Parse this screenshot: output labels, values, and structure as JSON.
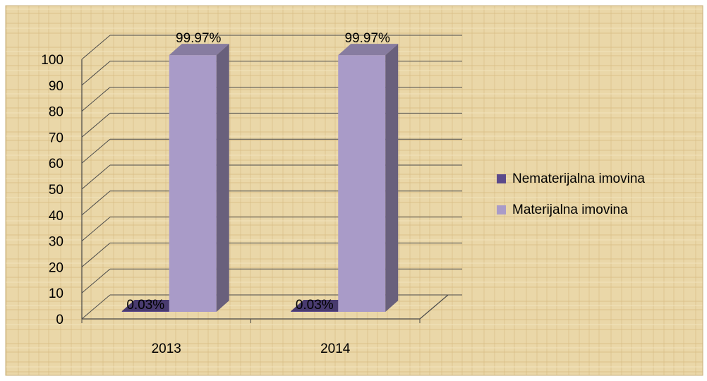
{
  "chart_data": {
    "type": "bar",
    "title": "",
    "xlabel": "",
    "ylabel": "",
    "categories": [
      "2013",
      "2014"
    ],
    "ylim": [
      0,
      100
    ],
    "yticks": [
      0,
      10,
      20,
      30,
      40,
      50,
      60,
      70,
      80,
      90,
      100
    ],
    "grid": true,
    "legend_position": "right",
    "series": [
      {
        "name": "Nematerijalna imovina",
        "values": [
          0.03,
          0.03
        ],
        "labels": [
          "0.03%",
          "0.03%"
        ],
        "color": "#5b4a8b"
      },
      {
        "name": "Materijalna imovina",
        "values": [
          99.97,
          99.97
        ],
        "labels": [
          "99.97%",
          "99.97%"
        ],
        "color": "#a99bc8"
      }
    ]
  },
  "colors": {
    "background": "#ead7a8",
    "gridline": "#4a4a4a",
    "text": "#000000",
    "series_dark": "#5b4a8b",
    "series_light": "#a99bc8"
  }
}
